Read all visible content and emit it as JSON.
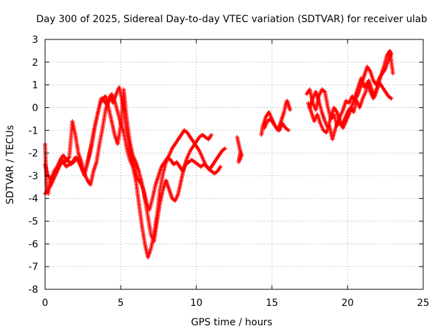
{
  "chart_data": {
    "type": "scatter",
    "title": "Day 300 of 2025, Sidereal Day-to-day VTEC variation (SDTVAR) for receiver ulab",
    "xlabel": "GPS time / hours",
    "ylabel": "SDTVAR / TECUs",
    "xlim": [
      0,
      25
    ],
    "ylim": [
      -8,
      3
    ],
    "xticks": [
      0,
      5,
      10,
      15,
      20,
      25
    ],
    "yticks": [
      -8,
      -7,
      -6,
      -5,
      -4,
      -3,
      -2,
      -1,
      0,
      1,
      2,
      3
    ],
    "grid": true,
    "marker": "+",
    "color": "#ff0000",
    "series": [
      {
        "name": "SDTVAR",
        "segments": [
          {
            "x": [
              0.0,
              0.1,
              0.2,
              0.3,
              0.5,
              0.7,
              0.9,
              1.1,
              1.3,
              1.5,
              1.7,
              1.9,
              2.1,
              2.3,
              2.5,
              2.7,
              2.9,
              3.1,
              3.3,
              3.5,
              3.7,
              3.9,
              4.1,
              4.3,
              4.5,
              4.7,
              4.9,
              5.1,
              5.3,
              5.5,
              5.7,
              5.9,
              6.1,
              6.3,
              6.5,
              6.7,
              6.9,
              7.1,
              7.3,
              7.5,
              7.7,
              7.9,
              8.1,
              8.3,
              8.5,
              8.7,
              8.9,
              9.1,
              9.3,
              9.5,
              9.7,
              9.9,
              10.1,
              10.3,
              10.5,
              10.7,
              10.9,
              11.1,
              11.3,
              11.5,
              11.7,
              11.9
            ],
            "y": [
              -1.6,
              -3.5,
              -3.8,
              -3.3,
              -3.0,
              -2.9,
              -2.6,
              -2.3,
              -2.4,
              -2.3,
              -2.5,
              -2.4,
              -2.2,
              -2.5,
              -2.8,
              -2.7,
              -2.2,
              -1.6,
              -0.8,
              -0.2,
              0.4,
              0.3,
              0.1,
              0.5,
              0.2,
              0.6,
              0.9,
              0.3,
              -0.7,
              -1.4,
              -2.2,
              -2.6,
              -3.1,
              -3.3,
              -3.6,
              -4.2,
              -4.5,
              -4.0,
              -3.4,
              -3.0,
              -2.6,
              -2.4,
              -2.2,
              -2.3,
              -2.5,
              -2.4,
              -2.6,
              -2.8,
              -2.5,
              -2.4,
              -2.3,
              -2.4,
              -2.5,
              -2.6,
              -2.5,
              -2.6,
              -2.7,
              -2.5,
              -2.3,
              -2.1,
              -1.9,
              -1.8
            ]
          },
          {
            "x": [
              0.0,
              0.2,
              0.4,
              0.6,
              0.8,
              1.0,
              1.2,
              1.4,
              1.6,
              1.8,
              2.0,
              2.2,
              2.4,
              2.6,
              2.8,
              3.0,
              3.2,
              3.4,
              3.6,
              3.8,
              4.0,
              4.2,
              4.4,
              4.6,
              4.8,
              5.0,
              5.2,
              5.4,
              5.6,
              5.8,
              6.0,
              6.2,
              6.4,
              6.6,
              6.8,
              7.0,
              7.2,
              7.4,
              7.6,
              7.8,
              8.0,
              8.2,
              8.4,
              8.6,
              8.8,
              9.0,
              9.2,
              9.4,
              9.6,
              9.8,
              10.0,
              10.2,
              10.4,
              10.6,
              10.8,
              11.0,
              11.2,
              11.4,
              11.6
            ],
            "y": [
              -2.5,
              -3.0,
              -3.2,
              -2.8,
              -2.6,
              -2.3,
              -2.1,
              -2.3,
              -2.2,
              -0.6,
              -1.2,
              -2.0,
              -2.4,
              -2.9,
              -3.2,
              -3.4,
              -2.8,
              -2.4,
              -1.6,
              -0.9,
              -0.1,
              0.3,
              0.6,
              0.3,
              -0.2,
              -0.7,
              -1.1,
              -1.8,
              -2.3,
              -2.6,
              -3.2,
              -4.2,
              -5.2,
              -6.0,
              -6.6,
              -6.2,
              -5.6,
              -4.7,
              -3.6,
              -2.9,
              -2.4,
              -2.1,
              -1.8,
              -1.6,
              -1.4,
              -1.2,
              -1.0,
              -1.1,
              -1.3,
              -1.5,
              -1.7,
              -1.9,
              -2.2,
              -2.5,
              -2.7,
              -2.8,
              -2.9,
              -2.8,
              -2.6
            ]
          },
          {
            "x": [
              0.0,
              0.2,
              0.4,
              0.6,
              0.8,
              1.0,
              1.2,
              1.4,
              1.6,
              1.8,
              2.0,
              2.2,
              2.4,
              2.6,
              2.8,
              3.0,
              3.2,
              3.4,
              3.6,
              3.8,
              4.0,
              4.2,
              4.4,
              4.6,
              4.8,
              5.0,
              5.2,
              5.4,
              5.6,
              5.8,
              6.0,
              6.2,
              6.4,
              6.6,
              6.8,
              7.0,
              7.2,
              7.4,
              7.6,
              7.8,
              8.0,
              8.2,
              8.4,
              8.6,
              8.8,
              9.0,
              9.2,
              9.4,
              9.6,
              9.8,
              10.0,
              10.2,
              10.4,
              10.6,
              10.8,
              11.0
            ],
            "y": [
              -3.8,
              -3.6,
              -3.4,
              -3.1,
              -2.8,
              -2.5,
              -2.4,
              -2.6,
              -2.5,
              -2.4,
              -2.2,
              -2.3,
              -2.6,
              -3.0,
              -2.4,
              -1.8,
              -1.1,
              -0.5,
              0.1,
              0.4,
              0.5,
              0.0,
              -0.6,
              -1.2,
              -1.6,
              -0.8,
              0.8,
              -0.5,
              -1.5,
              -2.1,
              -2.4,
              -2.8,
              -3.3,
              -4.0,
              -4.8,
              -5.6,
              -5.9,
              -5.0,
              -4.2,
              -3.6,
              -3.2,
              -3.6,
              -4.0,
              -4.1,
              -3.8,
              -3.2,
              -2.6,
              -2.2,
              -1.9,
              -1.7,
              -1.5,
              -1.3,
              -1.2,
              -1.3,
              -1.4,
              -1.2
            ]
          },
          {
            "x": [
              12.7,
              12.8,
              12.9,
              13.0,
              12.8,
              12.9
            ],
            "y": [
              -1.3,
              -1.6,
              -1.9,
              -2.1,
              -2.4,
              -2.0
            ]
          },
          {
            "x": [
              14.3,
              14.4,
              14.6,
              14.8,
              15.0,
              15.2,
              15.4,
              15.6,
              15.8,
              15.9,
              16.0,
              16.1,
              16.2
            ],
            "y": [
              -1.2,
              -0.8,
              -0.4,
              -0.2,
              -0.5,
              -0.8,
              -1.0,
              -0.6,
              -0.2,
              0.1,
              0.3,
              0.1,
              -0.1
            ]
          },
          {
            "x": [
              14.5,
              14.7,
              14.9,
              15.1,
              15.3,
              15.5,
              15.7,
              15.9,
              16.1
            ],
            "y": [
              -0.9,
              -0.6,
              -0.5,
              -0.7,
              -0.9,
              -1.0,
              -0.7,
              -0.9,
              -1.0
            ]
          },
          {
            "x": [
              17.3,
              17.5,
              17.7,
              17.9,
              18.1,
              18.3,
              18.5,
              18.7,
              18.9,
              19.1,
              19.3,
              19.5,
              19.7,
              19.9,
              20.1,
              20.3,
              20.5,
              20.7,
              20.9,
              21.1,
              21.3,
              21.5,
              21.7,
              21.9,
              22.1,
              22.3,
              22.5,
              22.7,
              22.9
            ],
            "y": [
              0.6,
              0.8,
              0.2,
              -0.1,
              0.5,
              0.8,
              0.7,
              0.0,
              -0.5,
              -0.3,
              -0.8,
              -0.4,
              -0.1,
              0.3,
              0.2,
              0.5,
              0.3,
              0.6,
              1.0,
              1.4,
              1.8,
              1.6,
              1.2,
              1.0,
              1.3,
              1.5,
              1.7,
              2.1,
              2.4
            ]
          },
          {
            "x": [
              17.4,
              17.6,
              17.8,
              18.0,
              18.2,
              18.4,
              18.6,
              18.8,
              19.0,
              19.2,
              19.4,
              19.6,
              19.8,
              20.0,
              20.2,
              20.4,
              20.6,
              20.8,
              21.0,
              21.2,
              21.4,
              21.6,
              21.8,
              22.0,
              22.2,
              22.4,
              22.6,
              22.8,
              23.0
            ],
            "y": [
              0.2,
              -0.2,
              -0.6,
              -0.3,
              -0.7,
              -1.0,
              -1.1,
              -0.8,
              -1.4,
              -0.9,
              -0.6,
              -0.8,
              -0.5,
              -0.2,
              0.0,
              -0.2,
              0.3,
              0.0,
              0.4,
              0.7,
              1.2,
              0.8,
              0.5,
              0.9,
              1.4,
              1.8,
              2.3,
              2.5,
              1.5
            ]
          },
          {
            "x": [
              17.5,
              17.7,
              17.9,
              18.1,
              18.3,
              18.5,
              18.7,
              18.9,
              19.1,
              19.3,
              19.5,
              19.7,
              19.9,
              20.1,
              20.3,
              20.5,
              20.7,
              20.9,
              21.1,
              21.3,
              21.5,
              21.7,
              21.9,
              22.1,
              22.3,
              22.5,
              22.7,
              22.9
            ],
            "y": [
              0.0,
              0.4,
              0.7,
              0.3,
              -0.2,
              -0.6,
              -0.9,
              -0.4,
              0.0,
              -0.2,
              -0.6,
              -0.9,
              -0.6,
              -0.3,
              0.1,
              0.5,
              0.9,
              1.3,
              0.9,
              1.1,
              0.7,
              0.4,
              0.8,
              1.1,
              0.9,
              0.7,
              0.5,
              0.4
            ]
          }
        ]
      }
    ]
  }
}
